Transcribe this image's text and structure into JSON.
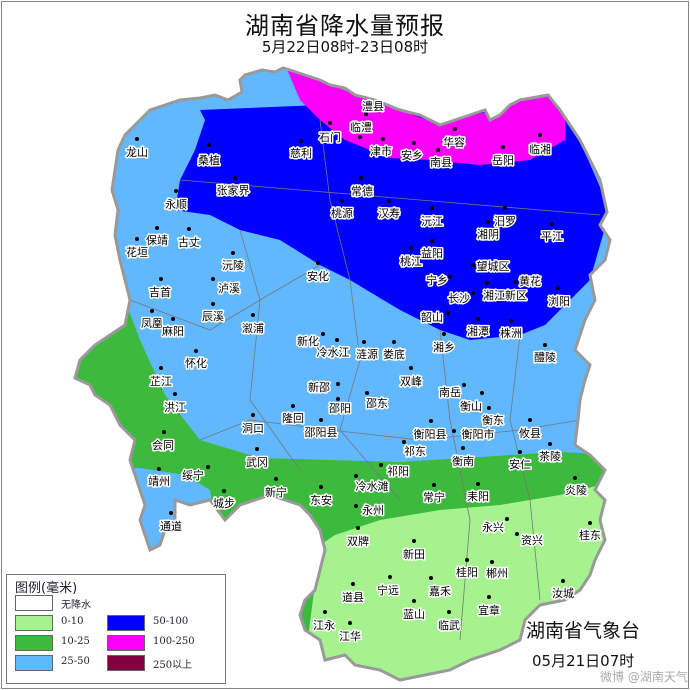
{
  "title": "湖南省降水量预报",
  "subtitle": "5月22日08时-23日08时",
  "agency": "湖南省气象台",
  "issued": "05月21日07时",
  "watermark": "微博 @湖南天气",
  "legend": {
    "title": "图例(毫米)",
    "items": [
      {
        "label": "无降水",
        "color": "#ffffff"
      },
      {
        "label": "0-10",
        "color": "#a6f28f"
      },
      {
        "label": "10-25",
        "color": "#3dba3d"
      },
      {
        "label": "25-50",
        "color": "#61b8ff"
      },
      {
        "label": "50-100",
        "color": "#0000fe"
      },
      {
        "label": "100-250",
        "color": "#fa00fa"
      },
      {
        "label": "250以上",
        "color": "#800040"
      }
    ]
  },
  "cities": [
    "澧县",
    "临澧",
    "石门",
    "津市",
    "安乡",
    "南县",
    "华容",
    "岳阳",
    "临湘",
    "龙山",
    "桑植",
    "慈利",
    "张家界",
    "常德",
    "永顺",
    "桃源",
    "汉寿",
    "沅江",
    "汨罗",
    "湘阴",
    "平江",
    "保靖",
    "古丈",
    "花垣",
    "沅陵",
    "安化",
    "桃江",
    "益阳",
    "望城区",
    "宁乡",
    "黄花",
    "湘江新区",
    "长沙",
    "浏阳",
    "吉首",
    "泸溪",
    "辰溪",
    "凤凰",
    "麻阳",
    "溆浦",
    "韶山",
    "湘潭",
    "株洲",
    "新化",
    "冷水江",
    "涟源",
    "娄底",
    "湘乡",
    "醴陵",
    "怀化",
    "芷江",
    "双峰",
    "新邵",
    "南岳",
    "邵阳",
    "邵东",
    "衡山",
    "洪江",
    "衡东",
    "隆回",
    "洞口",
    "邵阳县",
    "衡阳县",
    "衡阳市",
    "攸县",
    "会同",
    "祁东",
    "衡南",
    "安仁",
    "茶陵",
    "武冈",
    "祁阳",
    "靖州",
    "绥宁",
    "新宁",
    "冷水滩",
    "常宁",
    "耒阳",
    "炎陵",
    "城步",
    "东安",
    "永州",
    "通道",
    "永兴",
    "桂东",
    "双牌",
    "资兴",
    "新田",
    "桂阳",
    "郴州",
    "宁远",
    "嘉禾",
    "道县",
    "汝城",
    "宜章",
    "蓝山",
    "临武",
    "江永",
    "江华"
  ]
}
